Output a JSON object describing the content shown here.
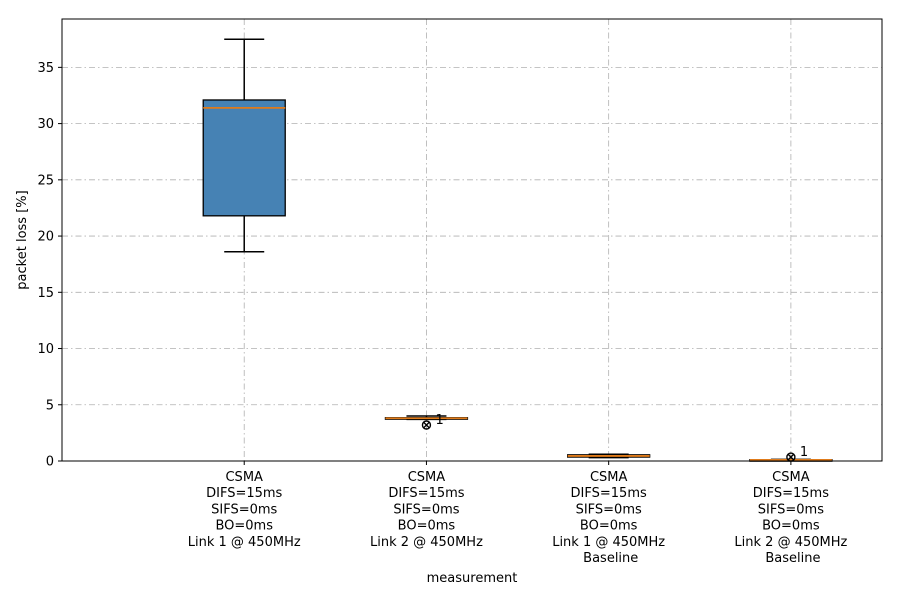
{
  "chart_data": {
    "type": "box",
    "xlabel": "measurement",
    "ylabel": "packet loss [%]",
    "ylim": [
      0,
      39.3
    ],
    "yticks": [
      0,
      5,
      10,
      15,
      20,
      25,
      30,
      35
    ],
    "grid": true,
    "grid_style": "dash-dot",
    "median_color": "#e07b1a",
    "positions": [
      1,
      2,
      3,
      4
    ],
    "xlim": [
      0,
      4.5
    ],
    "categories": [
      [
        "CSMA",
        "DIFS=15ms",
        "SIFS=0ms",
        "BO=0ms",
        "Link 1 @ 450MHz"
      ],
      [
        "CSMA",
        "DIFS=15ms",
        "SIFS=0ms",
        "BO=0ms",
        "Link 2 @ 450MHz"
      ],
      [
        "CSMA",
        "DIFS=15ms",
        "SIFS=0ms",
        "BO=0ms",
        "Link 1 @ 450MHz",
        " Baseline"
      ],
      [
        "CSMA",
        "DIFS=15ms",
        "SIFS=0ms",
        "BO=0ms",
        "Link 2 @ 450MHz",
        " Baseline"
      ]
    ],
    "boxes": [
      {
        "whislo": 18.6,
        "q1": 21.8,
        "med": 31.4,
        "q3": 32.1,
        "whishi": 37.5,
        "color": "#4682b4",
        "fliers": []
      },
      {
        "whislo": 3.7,
        "q1": 3.75,
        "med": 3.8,
        "q3": 3.85,
        "whishi": 4.0,
        "color": "#e07b1a",
        "fliers": [
          3.2
        ],
        "flier_label": "1"
      },
      {
        "whislo": 0.3,
        "q1": 0.35,
        "med": 0.45,
        "q3": 0.55,
        "whishi": 0.6,
        "color": "#2e7d1f",
        "fliers": []
      },
      {
        "whislo": 0.05,
        "q1": 0.08,
        "med": 0.1,
        "q3": 0.12,
        "whishi": 0.15,
        "color": "#e07b1a",
        "fliers": [
          0.35
        ],
        "flier_label": "1"
      }
    ]
  }
}
